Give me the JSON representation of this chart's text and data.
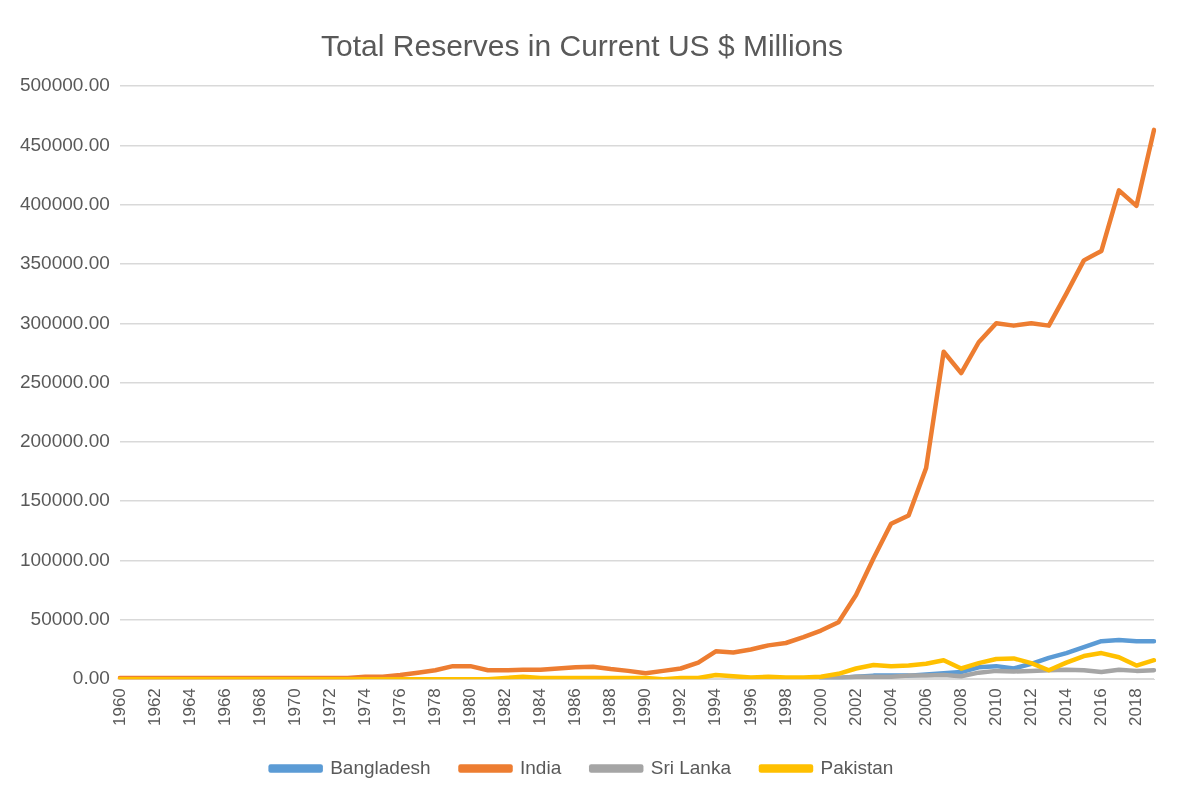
{
  "chart_data": {
    "type": "line",
    "title": "Total Reserves in Current US $ Millions",
    "categories": [
      "1960",
      null,
      "1962",
      null,
      "1964",
      null,
      "1966",
      null,
      "1968",
      null,
      "1970",
      null,
      "1972",
      null,
      "1974",
      null,
      "1976",
      null,
      "1978",
      null,
      "1980",
      null,
      "1982",
      null,
      "1984",
      null,
      "1986",
      null,
      "1988",
      null,
      "1990",
      null,
      "1992",
      null,
      "1994",
      null,
      "1996",
      null,
      "1998",
      null,
      "2000",
      null,
      "2002",
      null,
      "2004",
      null,
      "2006",
      null,
      "2008",
      null,
      "2010",
      null,
      "2012",
      null,
      "2014",
      null,
      "2016",
      null,
      "2018",
      null
    ],
    "series": [
      {
        "name": "Bangladesh",
        "color": "#5b9bd5",
        "values": [
          null,
          null,
          null,
          null,
          null,
          null,
          null,
          null,
          null,
          null,
          null,
          null,
          null,
          null,
          null,
          null,
          null,
          null,
          null,
          null,
          null,
          null,
          null,
          null,
          null,
          null,
          null,
          null,
          null,
          null,
          null,
          null,
          null,
          null,
          null,
          null,
          null,
          null,
          null,
          null,
          1000,
          1000,
          2000,
          3000,
          3000,
          3000,
          4000,
          5000,
          6000,
          10000,
          11000,
          9000,
          13000,
          18000,
          22000,
          27000,
          32000,
          33000,
          32000,
          32000
        ]
      },
      {
        "name": "India",
        "color": "#ed7d31",
        "values": [
          1000,
          1000,
          1000,
          1000,
          1000,
          1000,
          1000,
          1000,
          1000,
          1000,
          1000,
          1000,
          1000,
          1000,
          2000,
          2000,
          3500,
          5500,
          7500,
          11000,
          11000,
          7500,
          7500,
          8000,
          8000,
          9000,
          10000,
          10500,
          8500,
          7000,
          5000,
          7000,
          9000,
          14000,
          23500,
          22500,
          25000,
          28500,
          30500,
          35500,
          41000,
          48000,
          71000,
          102000,
          131000,
          138000,
          178000,
          276000,
          258000,
          284000,
          300000,
          298000,
          300000,
          298000,
          325000,
          353000,
          361000,
          412000,
          399000,
          463000
        ]
      },
      {
        "name": "Sri Lanka",
        "color": "#a5a5a5",
        "values": [
          null,
          null,
          null,
          null,
          null,
          null,
          null,
          null,
          null,
          null,
          null,
          null,
          null,
          null,
          null,
          null,
          null,
          null,
          null,
          null,
          null,
          null,
          null,
          null,
          null,
          null,
          null,
          null,
          null,
          null,
          null,
          null,
          null,
          null,
          null,
          null,
          null,
          null,
          null,
          null,
          1000,
          1000,
          2000,
          2000,
          2000,
          3000,
          3000,
          3500,
          2500,
          5500,
          7000,
          6500,
          7000,
          7500,
          8000,
          7500,
          6000,
          8000,
          7000,
          7500
        ]
      },
      {
        "name": "Pakistan",
        "color": "#ffc000",
        "values": [
          0,
          0,
          0,
          0,
          0,
          0,
          0,
          0,
          0,
          0,
          0,
          0,
          0,
          0,
          0,
          0,
          0,
          0,
          0,
          0,
          0,
          0,
          1000,
          2000,
          1000,
          1000,
          1000,
          1000,
          1000,
          1000,
          1000,
          0,
          1000,
          1000,
          3500,
          2500,
          1500,
          2000,
          1500,
          1500,
          2000,
          4500,
          9000,
          12000,
          11000,
          11500,
          13000,
          16000,
          9000,
          13500,
          17000,
          17500,
          13500,
          7500,
          14000,
          19500,
          22000,
          18500,
          11500,
          16000
        ]
      }
    ],
    "ylim": [
      0,
      500000
    ],
    "yticks": [
      {
        "value": 0,
        "label": "0.00"
      },
      {
        "value": 50000,
        "label": "50000.00"
      },
      {
        "value": 100000,
        "label": "100000.00"
      },
      {
        "value": 150000,
        "label": "150000.00"
      },
      {
        "value": 200000,
        "label": "200000.00"
      },
      {
        "value": 250000,
        "label": "250000.00"
      },
      {
        "value": 300000,
        "label": "300000.00"
      },
      {
        "value": 350000,
        "label": "350000.00"
      },
      {
        "value": 400000,
        "label": "400000.00"
      },
      {
        "value": 450000,
        "label": "450000.00"
      },
      {
        "value": 500000,
        "label": "500000.00"
      }
    ],
    "grid": "y",
    "legend": "bottom",
    "marker": "none",
    "line_style": "solid"
  }
}
